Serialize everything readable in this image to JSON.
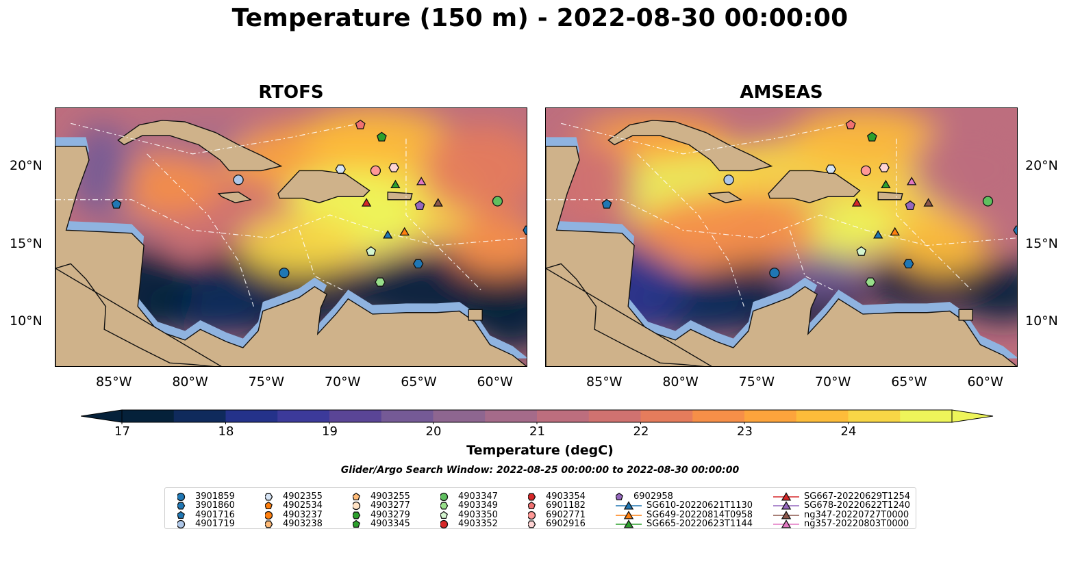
{
  "title": "Temperature (150 m) - 2022-08-30 00:00:00",
  "panels": [
    {
      "title": "RTOFS"
    },
    {
      "title": "AMSEAS"
    }
  ],
  "axes": {
    "x_ticks": [
      "85°W",
      "80°W",
      "75°W",
      "70°W",
      "65°W",
      "60°W"
    ],
    "y_ticks": [
      "20°N",
      "15°N",
      "10°N"
    ],
    "lon_range": [
      -89,
      -58
    ],
    "lat_range": [
      7,
      24
    ]
  },
  "colorbar": {
    "label": "Temperature (degC)",
    "ticks": [
      "17",
      "18",
      "19",
      "20",
      "21",
      "22",
      "23",
      "24"
    ],
    "colors": [
      "#05213a",
      "#0f2a5c",
      "#24328a",
      "#3c3a9a",
      "#5a4596",
      "#755a96",
      "#8e6690",
      "#a56b8a",
      "#bd6e7e",
      "#d07270",
      "#e57c5c",
      "#f68f48",
      "#fda43c",
      "#fdbc3a",
      "#f8d646",
      "#eef55a"
    ]
  },
  "search_window": "Glider/Argo Search Window: 2022-08-25 00:00:00 to 2022-08-30 00:00:00",
  "legend": [
    {
      "label": "3901859",
      "marker": "circle",
      "color": "#1f77b4"
    },
    {
      "label": "3901860",
      "marker": "hexagon",
      "color": "#1f77b4"
    },
    {
      "label": "4901716",
      "marker": "pentagon",
      "color": "#1f77b4"
    },
    {
      "label": "4901719",
      "marker": "circle",
      "color": "#aec7e8"
    },
    {
      "label": "4902355",
      "marker": "hexagon",
      "color": "#d6e4f5"
    },
    {
      "label": "4902534",
      "marker": "pentagon",
      "color": "#ff7f0e"
    },
    {
      "label": "4903237",
      "marker": "circle",
      "color": "#ff7f0e"
    },
    {
      "label": "4903238",
      "marker": "hexagon",
      "color": "#ffbb78"
    },
    {
      "label": "4903255",
      "marker": "pentagon",
      "color": "#ffbb78"
    },
    {
      "label": "4903277",
      "marker": "circle",
      "color": "#ffe2c4"
    },
    {
      "label": "4903279",
      "marker": "hexagon",
      "color": "#2ca02c"
    },
    {
      "label": "4903345",
      "marker": "pentagon",
      "color": "#2ca02c"
    },
    {
      "label": "4903347",
      "marker": "circle",
      "color": "#5fbf5f"
    },
    {
      "label": "4903349",
      "marker": "hexagon",
      "color": "#98df8a"
    },
    {
      "label": "4903350",
      "marker": "pentagon",
      "color": "#d4f5cf"
    },
    {
      "label": "4903352",
      "marker": "circle",
      "color": "#d62728"
    },
    {
      "label": "4903354",
      "marker": "hexagon",
      "color": "#d62728"
    },
    {
      "label": "6901182",
      "marker": "pentagon",
      "color": "#f07070"
    },
    {
      "label": "6902771",
      "marker": "circle",
      "color": "#ff9896"
    },
    {
      "label": "6902916",
      "marker": "hexagon",
      "color": "#ffd4d4"
    },
    {
      "label": "6902958",
      "marker": "pentagon",
      "color": "#9467bd"
    },
    {
      "label": "SG610-20220621T1130",
      "marker": "triangle",
      "color": "#1f77b4"
    },
    {
      "label": "SG649-20220814T0958",
      "marker": "triangle",
      "color": "#ff7f0e"
    },
    {
      "label": "SG665-20220623T1144",
      "marker": "triangle",
      "color": "#2ca02c"
    },
    {
      "label": "SG667-20220629T1254",
      "marker": "triangle",
      "color": "#d62728"
    },
    {
      "label": "SG678-20220622T1240",
      "marker": "triangle",
      "color": "#9467bd"
    },
    {
      "label": "ng347-20220727T0000",
      "marker": "triangle",
      "color": "#8c564b"
    },
    {
      "label": "ng357-20220803T0000",
      "marker": "triangle",
      "color": "#e377c2"
    }
  ],
  "observations": [
    {
      "label": "4901716",
      "lon": -85.0,
      "lat": 17.7
    },
    {
      "label": "4901719",
      "lon": -77.0,
      "lat": 19.3
    },
    {
      "label": "3901859",
      "lon": -74.0,
      "lat": 13.2
    },
    {
      "label": "4902355",
      "lon": -70.3,
      "lat": 20.0
    },
    {
      "label": "6902771",
      "lon": -68.0,
      "lat": 19.9
    },
    {
      "label": "6902916",
      "lon": -66.8,
      "lat": 20.1
    },
    {
      "label": "6901182",
      "lon": -69.0,
      "lat": 22.9
    },
    {
      "label": "4903345",
      "lon": -67.6,
      "lat": 22.1
    },
    {
      "label": "SG665-20220623T1144",
      "lon": -66.7,
      "lat": 19.0
    },
    {
      "label": "ng357-20220803T0000",
      "lon": -65.0,
      "lat": 19.2
    },
    {
      "label": "SG667-20220629T1254",
      "lon": -68.6,
      "lat": 17.8
    },
    {
      "label": "6902958",
      "lon": -65.1,
      "lat": 17.6
    },
    {
      "label": "ng347-20220727T0000",
      "lon": -63.9,
      "lat": 17.8
    },
    {
      "label": "SG610-20220621T1130",
      "lon": -67.2,
      "lat": 15.7
    },
    {
      "label": "SG649-20220814T0958",
      "lon": -66.1,
      "lat": 15.9
    },
    {
      "label": "4903350",
      "lon": -68.3,
      "lat": 14.6
    },
    {
      "label": "4903349",
      "lon": -67.7,
      "lat": 12.6
    },
    {
      "label": "3901860",
      "lon": -65.2,
      "lat": 13.8
    },
    {
      "label": "4903347",
      "lon": -60.0,
      "lat": 17.9
    },
    {
      "label": "3901860",
      "lon": -58.0,
      "lat": 16.0
    }
  ]
}
